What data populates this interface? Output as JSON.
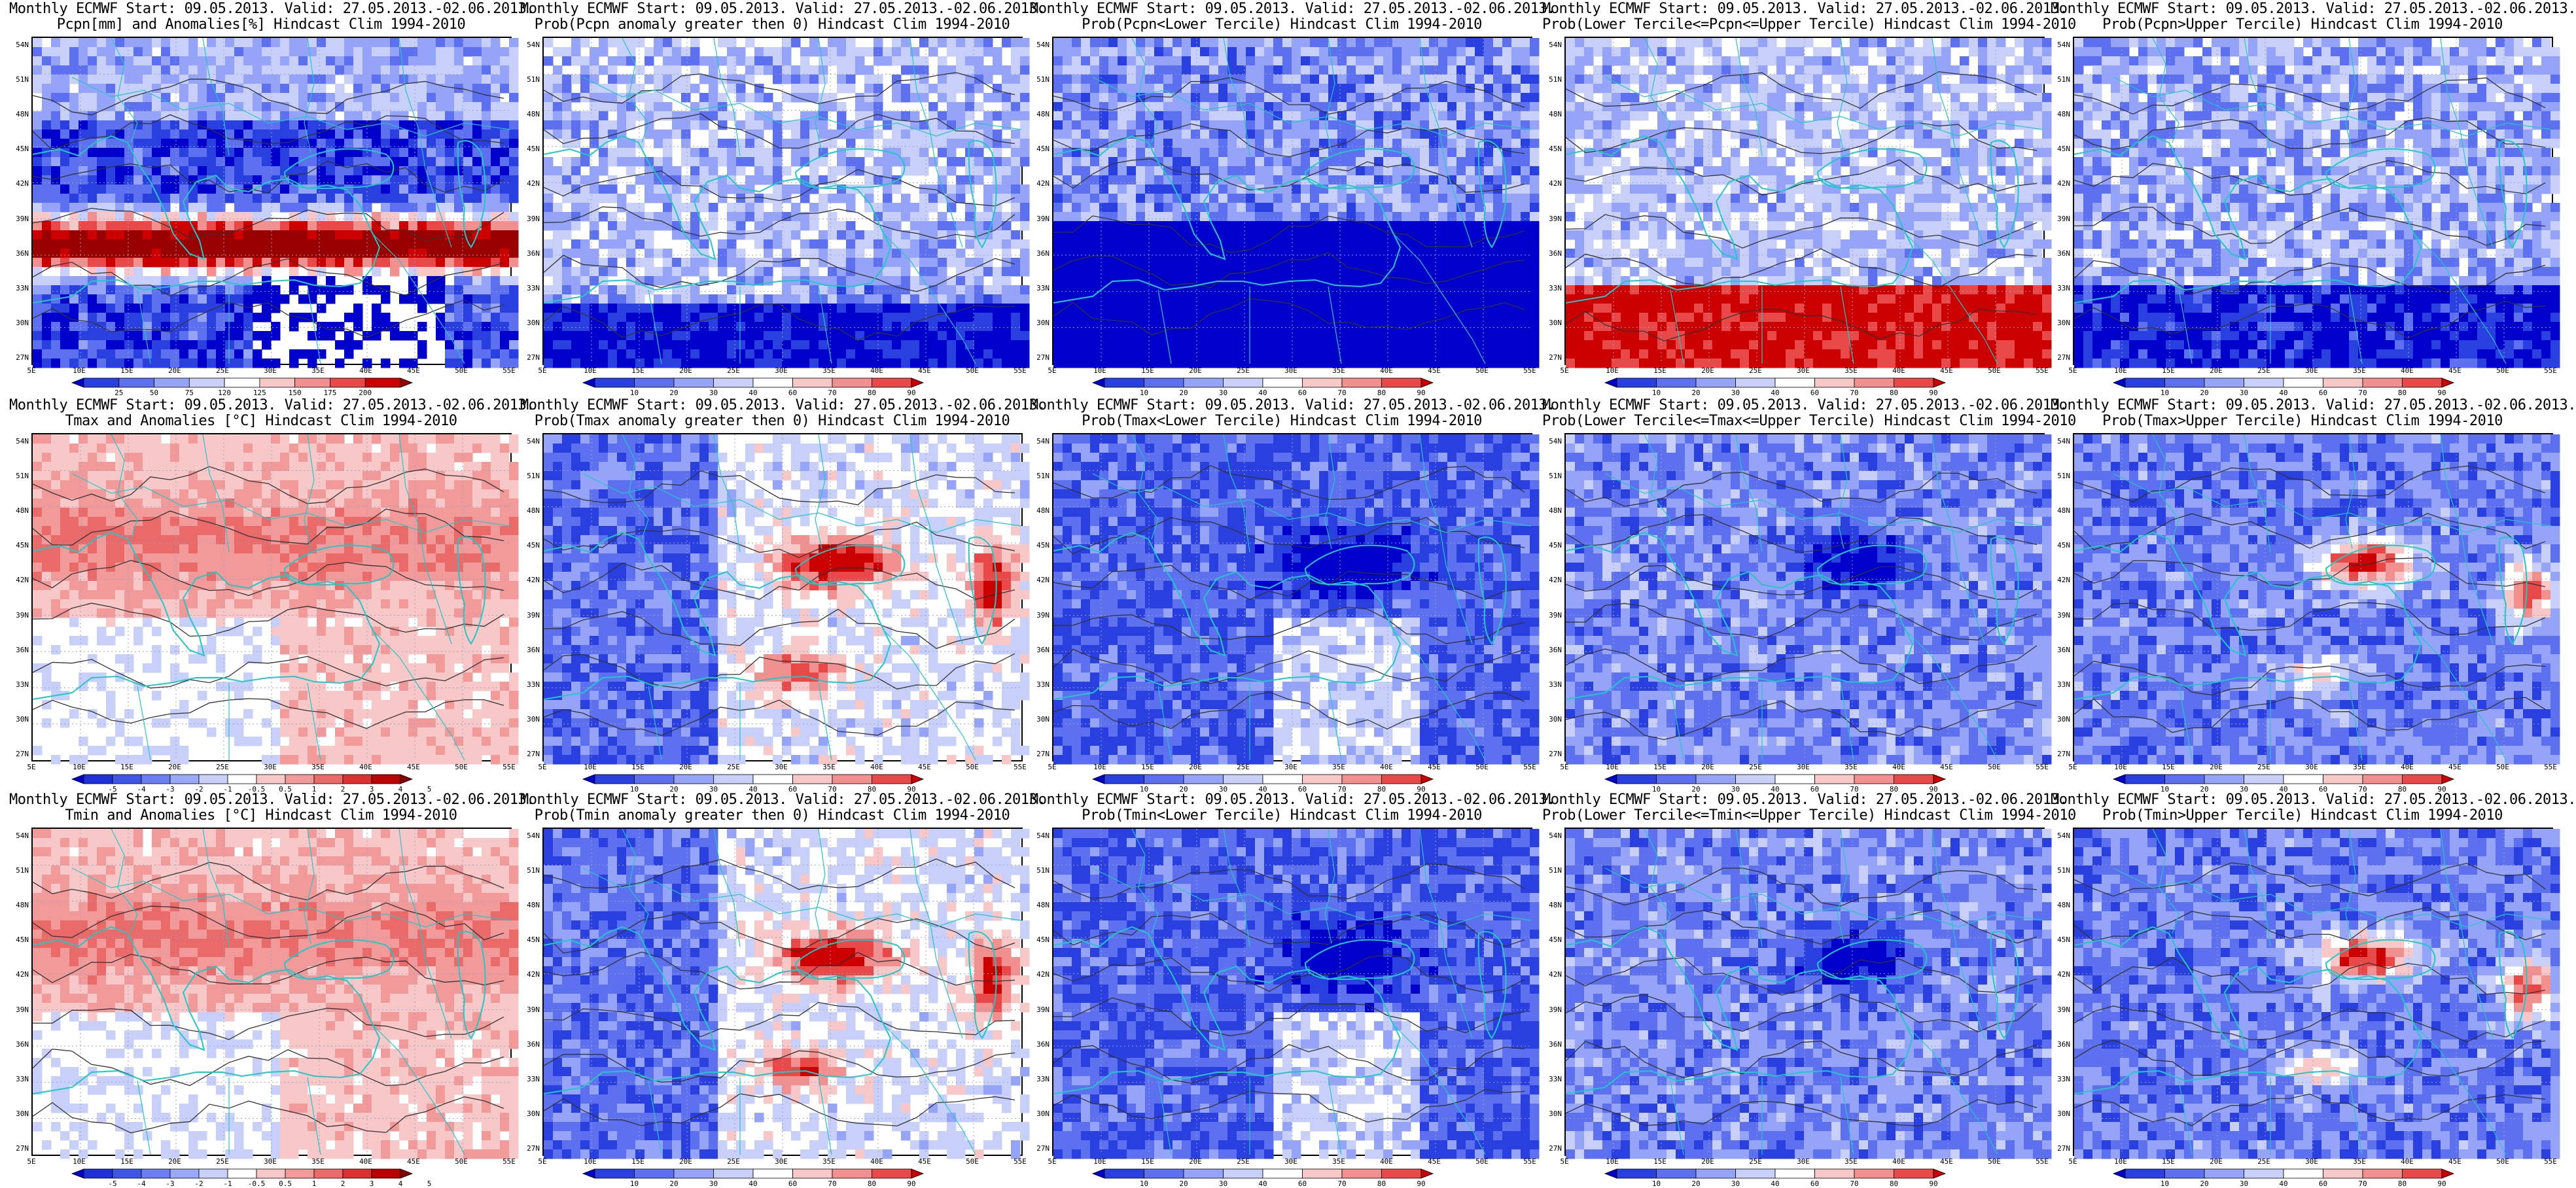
{
  "axes": {
    "lat_labels": [
      "54N",
      "51N",
      "48N",
      "45N",
      "42N",
      "39N",
      "36N",
      "33N",
      "30N",
      "27N"
    ],
    "lon_labels": [
      "5E",
      "10E",
      "15E",
      "20E",
      "25E",
      "30E",
      "35E",
      "40E",
      "45E",
      "50E",
      "55E"
    ]
  },
  "colorbars": {
    "pcpn_anom": {
      "labels": [
        "25",
        "50",
        "75",
        "120",
        "125",
        "150",
        "175",
        "200"
      ],
      "colors": [
        "#0000cc",
        "#2a3fe0",
        "#5c70f0",
        "#95a4f8",
        "#c8d0fa",
        "#ffffff",
        "#f8c8c8",
        "#f29090",
        "#e84848",
        "#cc0000",
        "#990000"
      ]
    },
    "temp_anom": {
      "labels": [
        "-5",
        "-4",
        "-3",
        "-2",
        "-1",
        "-0.5",
        "0.5",
        "1",
        "2",
        "3",
        "4",
        "5"
      ],
      "colors": [
        "#0000cc",
        "#1f30d8",
        "#3f55e6",
        "#6a7ef2",
        "#9aa8f8",
        "#c8d0fa",
        "#ffffff",
        "#f8c8c8",
        "#f29a9a",
        "#ea6a6a",
        "#dd3030",
        "#bb0000",
        "#880000"
      ]
    },
    "prob": {
      "labels": [
        "10",
        "20",
        "30",
        "40",
        "60",
        "70",
        "80",
        "90"
      ],
      "colors": [
        "#0000cc",
        "#2a3fe0",
        "#5c70f0",
        "#95a4f8",
        "#c8d0fa",
        "#ffffff",
        "#f8c8c8",
        "#f29090",
        "#e84848",
        "#cc0000"
      ]
    }
  },
  "panels": [
    {
      "row": 0,
      "col": 0,
      "line1": "Monthly ECMWF Start: 09.05.2013. Valid: 27.05.2013.-02.06.2013.",
      "line2": "Pcpn[mm] and Anomalies[%] Hindcast Clim 1994-2010",
      "colorbar": "pcpn_anom",
      "field": "precip_anom"
    },
    {
      "row": 0,
      "col": 1,
      "line1": "Monthly ECMWF Start: 09.05.2013. Valid: 27.05.2013.-02.06.2013.",
      "line2": "Prob(Pcpn anomaly greater then 0) Hindcast Clim 1994-2010",
      "colorbar": "prob",
      "field": "precip_gt0"
    },
    {
      "row": 0,
      "col": 2,
      "line1": "Monthly ECMWF Start: 09.05.2013. Valid: 27.05.2013.-02.06.2013.",
      "line2": "Prob(Pcpn<Lower Tercile) Hindcast Clim 1994-2010",
      "colorbar": "prob",
      "field": "precip_lower"
    },
    {
      "row": 0,
      "col": 3,
      "line1": "Monthly ECMWF Start: 09.05.2013. Valid: 27.05.2013.-02.06.2013.",
      "line2": "Prob(Lower Tercile<=Pcpn<=Upper Tercile) Hindcast Clim 1994-2010",
      "colorbar": "prob",
      "field": "precip_mid"
    },
    {
      "row": 0,
      "col": 4,
      "line1": "Monthly ECMWF Start: 09.05.2013. Valid: 27.05.2013.-02.06.2013.",
      "line2": "Prob(Pcpn>Upper Tercile) Hindcast Clim 1994-2010",
      "colorbar": "prob",
      "field": "precip_upper"
    },
    {
      "row": 1,
      "col": 0,
      "line1": "Monthly ECMWF Start: 09.05.2013. Valid: 27.05.2013.-02.06.2013.",
      "line2": "Tmax and Anomalies [°C] Hindcast Clim 1994-2010",
      "colorbar": "temp_anom",
      "field": "tmax_anom"
    },
    {
      "row": 1,
      "col": 1,
      "line1": "Monthly ECMWF Start: 09.05.2013. Valid: 27.05.2013.-02.06.2013.",
      "line2": "Prob(Tmax anomaly greater then 0) Hindcast Clim 1994-2010",
      "colorbar": "prob",
      "field": "warm"
    },
    {
      "row": 1,
      "col": 2,
      "line1": "Monthly ECMWF Start: 09.05.2013. Valid: 27.05.2013.-02.06.2013.",
      "line2": "Prob(Tmax<Lower Tercile) Hindcast Clim 1994-2010",
      "colorbar": "prob",
      "field": "cold"
    },
    {
      "row": 1,
      "col": 3,
      "line1": "Monthly ECMWF Start: 09.05.2013. Valid: 27.05.2013.-02.06.2013.",
      "line2": "Prob(Lower Tercile<=Tmax<=Upper Tercile) Hindcast Clim 1994-2010",
      "colorbar": "prob",
      "field": "mid_temp"
    },
    {
      "row": 1,
      "col": 4,
      "line1": "Monthly ECMWF Start: 09.05.2013. Valid: 27.05.2013.-02.06.2013.",
      "line2": "Prob(Tmax>Upper Tercile) Hindcast Clim 1994-2010",
      "colorbar": "prob",
      "field": "warm_upper"
    },
    {
      "row": 2,
      "col": 0,
      "line1": "Monthly ECMWF Start: 09.05.2013. Valid: 27.05.2013.-02.06.2013.",
      "line2": "Tmin and Anomalies [°C] Hindcast Clim 1994-2010",
      "colorbar": "temp_anom",
      "field": "tmin_anom"
    },
    {
      "row": 2,
      "col": 1,
      "line1": "Monthly ECMWF Start: 09.05.2013. Valid: 27.05.2013.-02.06.2013.",
      "line2": "Prob(Tmin anomaly greater then 0) Hindcast Clim 1994-2010",
      "colorbar": "prob",
      "field": "warm"
    },
    {
      "row": 2,
      "col": 2,
      "line1": "Monthly ECMWF Start: 09.05.2013. Valid: 27.05.2013.-02.06.2013.",
      "line2": "Prob(Tmin<Lower Tercile) Hindcast Clim 1994-2010",
      "colorbar": "prob",
      "field": "cold"
    },
    {
      "row": 2,
      "col": 3,
      "line1": "Monthly ECMWF Start: 09.05.2013. Valid: 27.05.2013.-02.06.2013.",
      "line2": "Prob(Lower Tercile<=Tmin<=Upper Tercile) Hindcast Clim 1994-2010",
      "colorbar": "prob",
      "field": "mid_temp"
    },
    {
      "row": 2,
      "col": 4,
      "line1": "Monthly ECMWF Start: 09.05.2013. Valid: 27.05.2013.-02.06.2013.",
      "line2": "Prob(Tmin>Upper Tercile) Hindcast Clim 1994-2010",
      "colorbar": "prob",
      "field": "warm_upper"
    }
  ]
}
